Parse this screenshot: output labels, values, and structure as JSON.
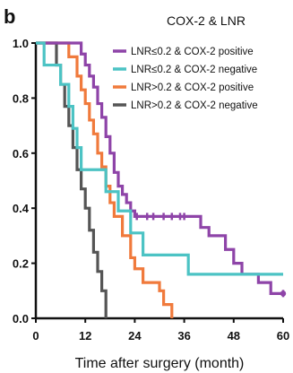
{
  "panel_letter": "b",
  "chart_data": {
    "type": "line",
    "title": "COX-2 & LNR",
    "xlabel": "Time after surgery (month)",
    "ylabel": "",
    "xlim": [
      0,
      60
    ],
    "ylim": [
      0,
      1.0
    ],
    "x_ticks": [
      "0",
      "12",
      "24",
      "36",
      "48",
      "60"
    ],
    "y_ticks": [
      "0.0",
      "0.2",
      "0.4",
      "0.6",
      "0.8",
      "1.0"
    ],
    "grid": false,
    "legend_position": "top-right",
    "series": [
      {
        "name": "LNR≤0.2 & COX-2 positive",
        "color": "#8e44a8",
        "steps": [
          [
            0,
            1.0
          ],
          [
            10,
            1.0
          ],
          [
            11,
            0.96
          ],
          [
            12,
            0.92
          ],
          [
            13,
            0.88
          ],
          [
            14,
            0.84
          ],
          [
            15,
            0.78
          ],
          [
            16,
            0.73
          ],
          [
            17,
            0.66
          ],
          [
            18,
            0.6
          ],
          [
            19,
            0.53
          ],
          [
            20,
            0.48
          ],
          [
            21,
            0.45
          ],
          [
            22,
            0.42
          ],
          [
            23,
            0.39
          ],
          [
            24,
            0.37
          ],
          [
            38,
            0.37
          ],
          [
            40,
            0.33
          ],
          [
            42,
            0.3
          ],
          [
            46,
            0.25
          ],
          [
            48,
            0.2
          ],
          [
            50,
            0.16
          ],
          [
            54,
            0.13
          ],
          [
            57,
            0.09
          ],
          [
            60,
            0.09
          ]
        ],
        "censor": [
          [
            24.5,
            0.37
          ],
          [
            27,
            0.37
          ],
          [
            28.5,
            0.37
          ],
          [
            31,
            0.37
          ],
          [
            33,
            0.37
          ],
          [
            35,
            0.37
          ],
          [
            36,
            0.37
          ],
          [
            60,
            0.09
          ]
        ]
      },
      {
        "name": "LNR≤0.2 & COX-2 negative",
        "color": "#4cc3c4",
        "steps": [
          [
            0,
            1.0
          ],
          [
            2,
            1.0
          ],
          [
            2,
            0.92
          ],
          [
            6,
            0.92
          ],
          [
            6,
            0.85
          ],
          [
            8,
            0.85
          ],
          [
            8,
            0.77
          ],
          [
            9,
            0.77
          ],
          [
            9,
            0.69
          ],
          [
            10,
            0.69
          ],
          [
            10,
            0.62
          ],
          [
            11,
            0.62
          ],
          [
            11,
            0.54
          ],
          [
            17,
            0.54
          ],
          [
            17,
            0.46
          ],
          [
            20,
            0.46
          ],
          [
            20,
            0.39
          ],
          [
            23,
            0.39
          ],
          [
            23,
            0.31
          ],
          [
            26,
            0.31
          ],
          [
            26,
            0.23
          ],
          [
            37,
            0.23
          ],
          [
            37,
            0.16
          ],
          [
            60,
            0.16
          ]
        ],
        "censor": []
      },
      {
        "name": "LNR>0.2 & COX-2 positive",
        "color": "#f07a3c",
        "steps": [
          [
            0,
            1.0
          ],
          [
            7,
            1.0
          ],
          [
            8,
            0.95
          ],
          [
            10,
            0.88
          ],
          [
            11,
            0.83
          ],
          [
            12,
            0.78
          ],
          [
            13,
            0.72
          ],
          [
            14,
            0.67
          ],
          [
            15,
            0.6
          ],
          [
            16,
            0.55
          ],
          [
            17,
            0.48
          ],
          [
            18,
            0.42
          ],
          [
            19,
            0.37
          ],
          [
            21,
            0.3
          ],
          [
            23,
            0.22
          ],
          [
            24,
            0.18
          ],
          [
            26,
            0.13
          ],
          [
            30,
            0.1
          ],
          [
            31,
            0.05
          ],
          [
            33,
            0.05
          ],
          [
            33,
            0.0
          ]
        ],
        "censor": []
      },
      {
        "name": "LNR>0.2 & COX-2 negative",
        "color": "#555555",
        "steps": [
          [
            0,
            1.0
          ],
          [
            5,
            1.0
          ],
          [
            5,
            0.92
          ],
          [
            6,
            0.92
          ],
          [
            6,
            0.85
          ],
          [
            7,
            0.85
          ],
          [
            7,
            0.77
          ],
          [
            8,
            0.77
          ],
          [
            8,
            0.7
          ],
          [
            9,
            0.7
          ],
          [
            9,
            0.62
          ],
          [
            10,
            0.62
          ],
          [
            10,
            0.54
          ],
          [
            11,
            0.54
          ],
          [
            11,
            0.47
          ],
          [
            12,
            0.47
          ],
          [
            12,
            0.4
          ],
          [
            13,
            0.4
          ],
          [
            13,
            0.32
          ],
          [
            14,
            0.32
          ],
          [
            14,
            0.24
          ],
          [
            15,
            0.24
          ],
          [
            15,
            0.17
          ],
          [
            16,
            0.17
          ],
          [
            16,
            0.1
          ],
          [
            17,
            0.1
          ],
          [
            17,
            0.0
          ]
        ],
        "censor": []
      }
    ]
  }
}
